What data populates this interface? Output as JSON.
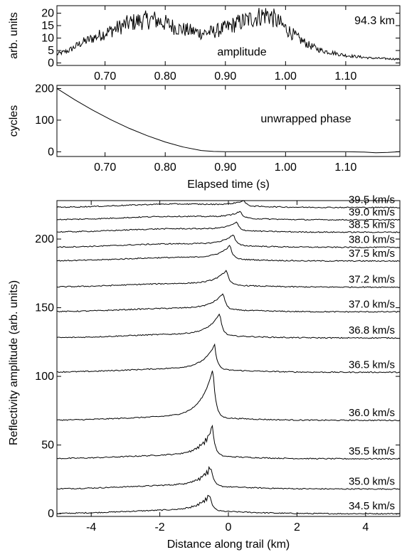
{
  "chart_data": [
    {
      "type": "line",
      "title": "",
      "annotation": "94.3 km",
      "series_label": "amplitude",
      "xlabel": "",
      "ylabel": "arb. units",
      "xlim": [
        0.62,
        1.19
      ],
      "ylim": [
        -1,
        23
      ],
      "xticks": [
        "0.70",
        "0.80",
        "0.90",
        "1.00",
        "1.10"
      ],
      "yticks": [
        "0",
        "5",
        "10",
        "15",
        "20"
      ],
      "x": [
        0.62,
        0.64,
        0.66,
        0.68,
        0.7,
        0.72,
        0.74,
        0.76,
        0.78,
        0.8,
        0.82,
        0.84,
        0.86,
        0.88,
        0.9,
        0.92,
        0.94,
        0.96,
        0.97,
        0.98,
        1.0,
        1.02,
        1.04,
        1.06,
        1.08,
        1.1,
        1.12,
        1.14,
        1.16,
        1.19
      ],
      "y": [
        3.5,
        5,
        8,
        10,
        12,
        14,
        16,
        17,
        17.5,
        16,
        14,
        13,
        12,
        12.5,
        14,
        16,
        17.5,
        19,
        19.5,
        18,
        14,
        10,
        7,
        5,
        4,
        3,
        2.5,
        2,
        1.8,
        1.5
      ]
    },
    {
      "type": "line",
      "title": "",
      "series_label": "unwrapped phase",
      "xlabel": "Elapsed time (s)",
      "ylabel": "cycles",
      "xlim": [
        0.62,
        1.19
      ],
      "ylim": [
        -15,
        210
      ],
      "xticks": [
        "0.70",
        "0.80",
        "0.90",
        "1.00",
        "1.10"
      ],
      "yticks": [
        "0",
        "100",
        "200"
      ],
      "x": [
        0.62,
        0.65,
        0.68,
        0.71,
        0.74,
        0.77,
        0.8,
        0.83,
        0.86,
        0.88,
        0.9,
        0.95,
        1.0,
        1.05,
        1.1,
        1.13,
        1.15,
        1.17,
        1.19
      ],
      "y": [
        200,
        164,
        131,
        101,
        74,
        51,
        31,
        15,
        4,
        1,
        0,
        0,
        0,
        0,
        0,
        -1,
        -3,
        -2,
        0
      ]
    },
    {
      "type": "line",
      "title": "",
      "xlabel": "Distance along trail (km)",
      "ylabel": "Reflectivity amplitude (arb. units)",
      "xlim": [
        -5,
        5
      ],
      "ylim": [
        -2,
        228
      ],
      "xticks": [
        "-4",
        "-2",
        "0",
        "2",
        "4"
      ],
      "yticks": [
        "0",
        "50",
        "100",
        "150",
        "200"
      ],
      "series": [
        {
          "name": "34.5 km/s",
          "peak_x": -0.55,
          "peak_y": 13
        },
        {
          "name": "35.0 km/s",
          "peak_x": -0.52,
          "peak_y": 16
        },
        {
          "name": "35.5 km/s",
          "peak_x": -0.47,
          "peak_y": 23
        },
        {
          "name": "36.0 km/s",
          "peak_x": -0.45,
          "peak_y": 36
        },
        {
          "name": "36.5 km/s",
          "peak_x": -0.4,
          "peak_y": 18
        },
        {
          "name": "36.8 km/s",
          "peak_x": -0.25,
          "peak_y": 16
        },
        {
          "name": "37.0 km/s",
          "peak_x": -0.15,
          "peak_y": 12
        },
        {
          "name": "37.2 km/s",
          "peak_x": -0.05,
          "peak_y": 11
        },
        {
          "name": "37.5 km/s",
          "peak_x": 0.05,
          "peak_y": 10
        },
        {
          "name": "38.0 km/s",
          "peak_x": 0.15,
          "peak_y": 8
        },
        {
          "name": "38.5 km/s",
          "peak_x": 0.25,
          "peak_y": 6
        },
        {
          "name": "39.0 km/s",
          "peak_x": 0.35,
          "peak_y": 5
        },
        {
          "name": "39.5 km/s",
          "peak_x": 0.45,
          "peak_y": 4
        }
      ],
      "baselines": [
        0,
        18,
        40,
        68,
        103,
        128,
        147,
        165,
        184,
        194,
        205,
        214,
        223
      ]
    }
  ]
}
